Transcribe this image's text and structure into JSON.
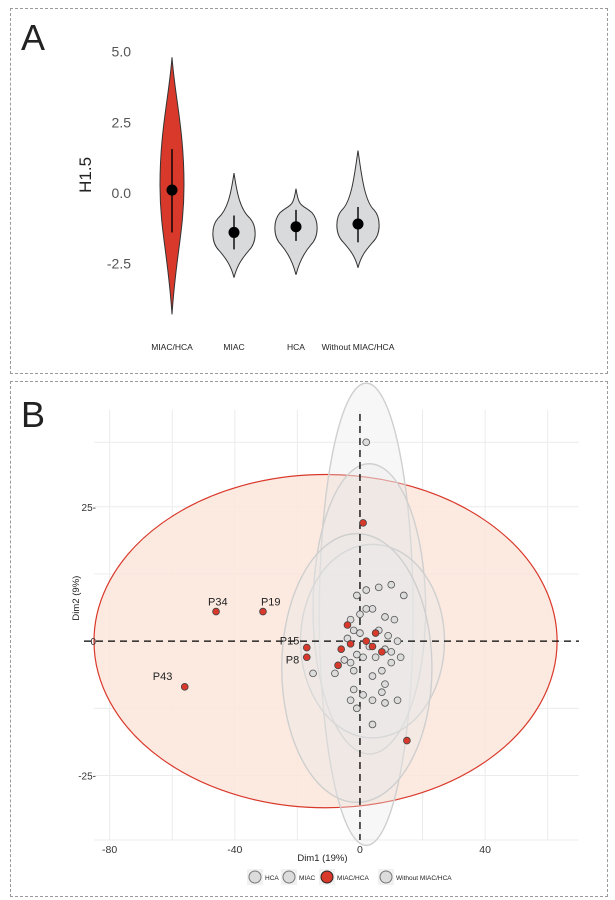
{
  "panel_a_letter": "A",
  "panel_b_letter": "B",
  "chart_data": [
    {
      "type": "violin",
      "ylabel": "H1.5",
      "ylim": [
        -4.5,
        5.2
      ],
      "yticks": [
        "5.0",
        "2.5",
        "0.0",
        "-2.5"
      ],
      "ytick_values": [
        5.0,
        2.5,
        0.0,
        -2.5
      ],
      "categories": [
        "MIAC/HCA",
        "MIAC",
        "HCA",
        "Without MIAC/HCA"
      ],
      "series": [
        {
          "mean": 0.1,
          "low": -1.4,
          "high": 1.55,
          "min": -4.3,
          "max": 4.8,
          "fill": "#d9392b"
        },
        {
          "mean": -1.4,
          "low": -2.0,
          "high": -0.8,
          "min": -3.0,
          "max": 0.7,
          "fill": "#d9dadb"
        },
        {
          "mean": -1.2,
          "low": -1.7,
          "high": -0.6,
          "min": -2.9,
          "max": 0.15,
          "fill": "#d9dadb"
        },
        {
          "mean": -1.1,
          "low": -1.75,
          "high": -0.5,
          "min": -2.65,
          "max": 1.5,
          "fill": "#d9dadb"
        }
      ]
    },
    {
      "type": "scatter",
      "xlabel": "Dim1 (19%)",
      "ylabel": "Dim2 (9%)",
      "xlim": [
        -85,
        70
      ],
      "ylim": [
        -37,
        43
      ],
      "xticks": [
        "-80",
        "-40",
        "0",
        "40"
      ],
      "xtick_values": [
        -80,
        -40,
        0,
        40
      ],
      "yticks": [
        "25-",
        "0",
        "-25-"
      ],
      "ytick_values": [
        25,
        0,
        -25
      ],
      "legend": [
        "HCA",
        "MIAC",
        "MIAC/HCA",
        "Without MIAC/HCA"
      ],
      "labels": [
        {
          "text": "P34",
          "x": -46,
          "y": 5.5
        },
        {
          "text": "P19",
          "x": -31,
          "y": 5.5
        },
        {
          "text": "P15",
          "x": -17,
          "y": -1.2
        },
        {
          "text": "P8",
          "x": -17,
          "y": -3.0
        },
        {
          "text": "P43",
          "x": -56,
          "y": -8.5
        }
      ],
      "red_points": [
        [
          -46,
          5.5
        ],
        [
          -31,
          5.5
        ],
        [
          -17,
          -1.2
        ],
        [
          -17,
          -3.0
        ],
        [
          -56,
          -8.5
        ],
        [
          1,
          22
        ],
        [
          -4,
          3
        ],
        [
          -3,
          -0.5
        ],
        [
          -6,
          -1.5
        ],
        [
          -7,
          -4.5
        ],
        [
          2,
          0
        ],
        [
          4,
          -1
        ],
        [
          5,
          1.5
        ],
        [
          7,
          -2
        ],
        [
          15,
          -18.5
        ]
      ],
      "grey_points": [
        [
          2,
          37
        ],
        [
          6,
          10
        ],
        [
          10,
          10.5
        ],
        [
          -1,
          8.5
        ],
        [
          2,
          9.5
        ],
        [
          14,
          8.5
        ],
        [
          4,
          6
        ],
        [
          8,
          4.5
        ],
        [
          -3,
          4
        ],
        [
          11,
          4
        ],
        [
          2,
          6
        ],
        [
          0,
          5
        ],
        [
          -2,
          2
        ],
        [
          6,
          2
        ],
        [
          9,
          1
        ],
        [
          12,
          0
        ],
        [
          -4,
          0.5
        ],
        [
          0,
          1.5
        ],
        [
          3,
          -1
        ],
        [
          8,
          -1.5
        ],
        [
          10,
          -2
        ],
        [
          -1,
          -2.5
        ],
        [
          1,
          -3
        ],
        [
          5,
          -3
        ],
        [
          13,
          -3
        ],
        [
          -3,
          -4
        ],
        [
          -5,
          -3.5
        ],
        [
          -2,
          -5.5
        ],
        [
          7,
          -5.5
        ],
        [
          10,
          -4
        ],
        [
          -15,
          -6
        ],
        [
          -8,
          -6
        ],
        [
          -2,
          -9
        ],
        [
          4,
          -6.5
        ],
        [
          8,
          -8
        ],
        [
          7,
          -9.5
        ],
        [
          1,
          -10
        ],
        [
          4,
          -11
        ],
        [
          12,
          -11
        ],
        [
          8,
          -11.5
        ],
        [
          -3,
          -11
        ],
        [
          -1,
          -12.5
        ],
        [
          4,
          -15.5
        ]
      ],
      "ellipses": {
        "red": {
          "cx": -11,
          "cy": 0,
          "rx": 74,
          "ry": 31,
          "fill": "#fbe6dc",
          "stroke": "#d9392b"
        },
        "grey": [
          {
            "cx": 2,
            "cy": 5,
            "rx": 15,
            "ry": 43
          },
          {
            "cx": 3,
            "cy": 6,
            "rx": 18,
            "ry": 27
          },
          {
            "cx": 4,
            "cy": 0,
            "rx": 23,
            "ry": 18
          },
          {
            "cx": -1,
            "cy": -5,
            "rx": 24,
            "ry": 25
          }
        ]
      }
    }
  ]
}
